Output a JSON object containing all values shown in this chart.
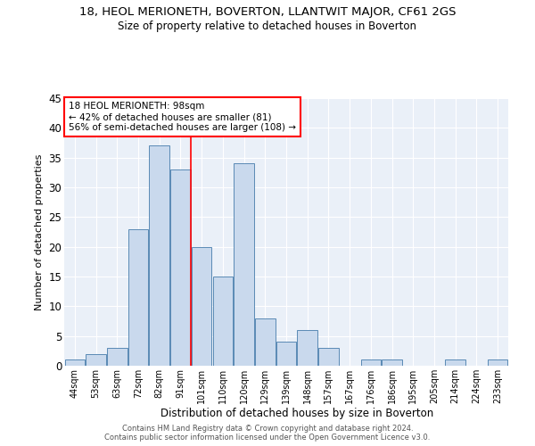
{
  "title": "18, HEOL MERIONETH, BOVERTON, LLANTWIT MAJOR, CF61 2GS",
  "subtitle": "Size of property relative to detached houses in Boverton",
  "xlabel": "Distribution of detached houses by size in Boverton",
  "ylabel": "Number of detached properties",
  "bar_color": "#c9d9ed",
  "bar_edge_color": "#5a8ab5",
  "categories": [
    "44sqm",
    "53sqm",
    "63sqm",
    "72sqm",
    "82sqm",
    "91sqm",
    "101sqm",
    "110sqm",
    "120sqm",
    "129sqm",
    "139sqm",
    "148sqm",
    "157sqm",
    "167sqm",
    "176sqm",
    "186sqm",
    "195sqm",
    "205sqm",
    "214sqm",
    "224sqm",
    "233sqm"
  ],
  "values": [
    1,
    2,
    3,
    23,
    37,
    33,
    20,
    15,
    34,
    8,
    4,
    6,
    3,
    0,
    1,
    1,
    0,
    0,
    1,
    0,
    1
  ],
  "ylim": [
    0,
    45
  ],
  "yticks": [
    0,
    5,
    10,
    15,
    20,
    25,
    30,
    35,
    40,
    45
  ],
  "property_line_x": 5.5,
  "annotation_text": "18 HEOL MERIONETH: 98sqm\n← 42% of detached houses are smaller (81)\n56% of semi-detached houses are larger (108) →",
  "annotation_box_color": "white",
  "annotation_box_edge_color": "red",
  "line_color": "red",
  "background_color": "#eaf0f8",
  "grid_color": "white",
  "footer_line1": "Contains HM Land Registry data © Crown copyright and database right 2024.",
  "footer_line2": "Contains public sector information licensed under the Open Government Licence v3.0."
}
